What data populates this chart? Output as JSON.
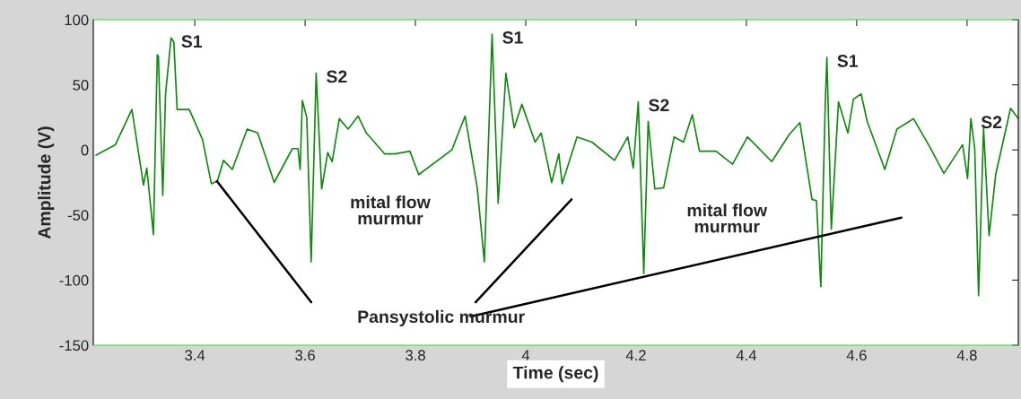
{
  "chart_data": {
    "type": "line",
    "xlabel": "Time (sec)",
    "ylabel": "Amplitude (V)",
    "xlim": [
      3.216,
      4.893
    ],
    "ylim": [
      -150,
      100
    ],
    "xticks": [
      3.4,
      3.6,
      3.8,
      {
        "value": 4.0,
        "label": "4"
      },
      4.2,
      4.4,
      4.6,
      4.8
    ],
    "yticks": [
      -150,
      -100,
      -50,
      0,
      50,
      100
    ],
    "grid": false,
    "marker": "none",
    "line_style": "solid",
    "series": [
      {
        "color": "#0f8a0f",
        "x": [
          3.221,
          3.256,
          3.286,
          3.307,
          3.313,
          3.325,
          3.332,
          3.334,
          3.342,
          3.347,
          3.357,
          3.362,
          3.368,
          3.39,
          3.414,
          3.43,
          3.441,
          3.452,
          3.468,
          3.495,
          3.514,
          3.544,
          3.577,
          3.587,
          3.591,
          3.595,
          3.603,
          3.611,
          3.62,
          3.63,
          3.641,
          3.649,
          3.662,
          3.678,
          3.696,
          3.711,
          3.744,
          3.763,
          3.79,
          3.806,
          3.866,
          3.89,
          3.912,
          3.925,
          3.939,
          3.95,
          3.964,
          3.979,
          3.993,
          4.017,
          4.028,
          4.047,
          4.06,
          4.066,
          4.093,
          4.12,
          4.161,
          4.185,
          4.195,
          4.204,
          4.214,
          4.222,
          4.234,
          4.25,
          4.269,
          4.286,
          4.302,
          4.315,
          4.345,
          4.375,
          4.402,
          4.446,
          4.478,
          4.497,
          4.519,
          4.527,
          4.535,
          4.543,
          4.546,
          4.554,
          4.567,
          4.584,
          4.594,
          4.608,
          4.619,
          4.651,
          4.673,
          4.703,
          4.733,
          4.758,
          4.792,
          4.801,
          4.807,
          4.814,
          4.821,
          4.83,
          4.84,
          4.852,
          4.879,
          4.893
        ],
        "values": [
          -4,
          4,
          31,
          -27,
          -14,
          -65,
          73,
          72,
          -35,
          43,
          86,
          83,
          31,
          31,
          8,
          -26,
          -24,
          -8,
          -15,
          16,
          13,
          -25,
          1,
          1,
          -15,
          38,
          25,
          -86,
          59,
          -30,
          -2,
          -9,
          24,
          16,
          26,
          13,
          -3,
          -3,
          -1,
          -19,
          0,
          26,
          -29,
          -86,
          89,
          -41,
          59,
          17,
          35,
          6,
          13,
          -25,
          -3,
          -26,
          10,
          6,
          -8,
          10,
          -14,
          37,
          -95,
          22,
          -30,
          -29,
          10,
          6,
          27,
          -1,
          -1,
          -11,
          10,
          -9,
          12,
          21,
          -38,
          -39,
          -105,
          36,
          71,
          -61,
          37,
          13,
          39,
          43,
          22,
          -15,
          16,
          24,
          2,
          -18,
          4,
          -22,
          24,
          1,
          -112,
          17,
          -66,
          -19,
          32,
          24
        ]
      },
      {
        "color": "#000000",
        "x": [
          3.44,
          3.611
        ],
        "values": [
          -24,
          -117
        ]
      },
      {
        "color": "#000000",
        "x": [
          4.083,
          3.909
        ],
        "values": [
          -38,
          -117
        ]
      },
      {
        "color": "#000000",
        "x": [
          4.681,
          3.9
        ],
        "values": [
          -52,
          -128
        ]
      }
    ],
    "annotations": [
      {
        "text": "S1",
        "x": 3.357,
        "y": 86
      },
      {
        "text": "S2",
        "x": 3.62,
        "y": 59
      },
      {
        "text": "S1",
        "x": 3.939,
        "y": 89
      },
      {
        "text": "S2",
        "x": 4.204,
        "y": 37
      },
      {
        "text": "S1",
        "x": 4.546,
        "y": 71
      },
      {
        "text": "S2",
        "x": 4.807,
        "y": 24
      },
      "mital flow\nmurmur",
      "mital flow\nmurmur",
      "Pansystolic murmur"
    ]
  }
}
